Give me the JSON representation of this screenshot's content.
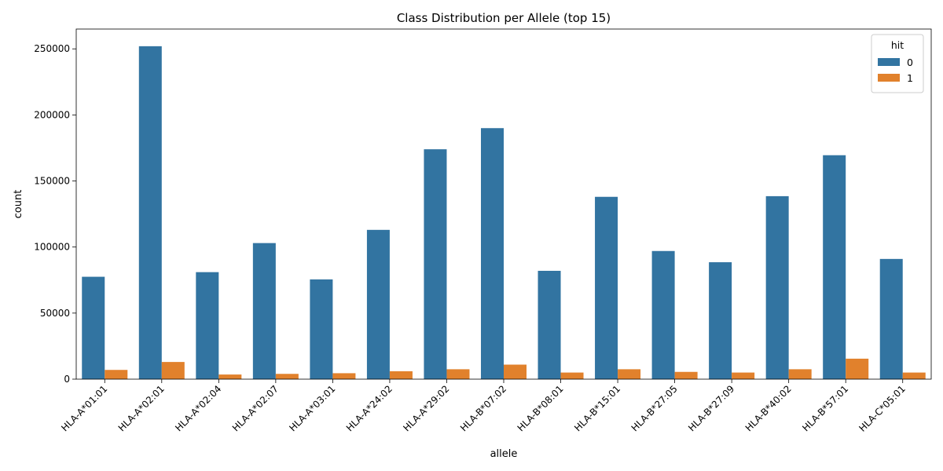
{
  "chart_data": {
    "type": "bar",
    "title": "Class Distribution per Allele (top 15)",
    "xlabel": "allele",
    "ylabel": "count",
    "ylim": [
      0,
      265000
    ],
    "yticks": [
      0,
      50000,
      100000,
      150000,
      200000,
      250000
    ],
    "grid": false,
    "legend": {
      "title": "hit",
      "placement": "top-right"
    },
    "categories": [
      "HLA-A*01:01",
      "HLA-A*02:01",
      "HLA-A*02:04",
      "HLA-A*02:07",
      "HLA-A*03:01",
      "HLA-A*24:02",
      "HLA-A*29:02",
      "HLA-B*07:02",
      "HLA-B*08:01",
      "HLA-B*15:01",
      "HLA-B*27:05",
      "HLA-B*27:09",
      "HLA-B*40:02",
      "HLA-B*57:01",
      "HLA-C*05:01"
    ],
    "series": [
      {
        "name": "0",
        "color": "#3274a1",
        "values": [
          77500,
          252000,
          81000,
          103000,
          75500,
          113000,
          174000,
          190000,
          82000,
          138000,
          97000,
          88500,
          138500,
          169500,
          91000
        ]
      },
      {
        "name": "1",
        "color": "#e1812c",
        "values": [
          7000,
          13000,
          3500,
          4000,
          4500,
          6000,
          7500,
          11000,
          5000,
          7500,
          5500,
          5000,
          7500,
          15500,
          5000
        ]
      }
    ]
  }
}
